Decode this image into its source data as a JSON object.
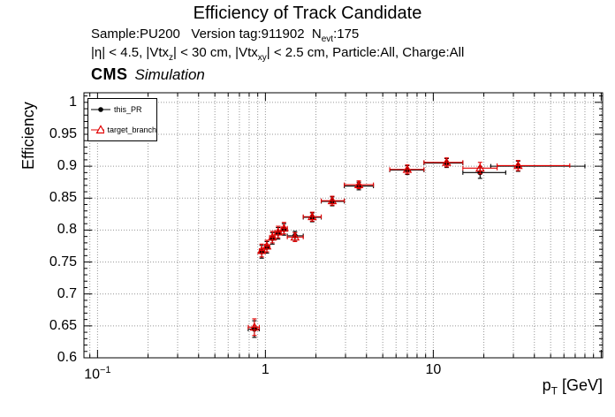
{
  "title": "Efficiency of Track Candidate",
  "header": {
    "sample_pre": "Sample:PU200   Version tag:911902  N",
    "sample_sub": "evt",
    "sample_post": ":175",
    "cuts_p1": "|η| < 4.5, |Vtx",
    "cuts_s1": "z",
    "cuts_p2": "| < 30 cm, |Vtx",
    "cuts_s2": "xy",
    "cuts_p3": "| < 2.5 cm, Particle:All, Charge:All"
  },
  "cms": {
    "label": "CMS",
    "sublabel": "Simulation"
  },
  "axes": {
    "y_title": "Efficiency",
    "x_title_pre": "p",
    "x_title_sub": "T",
    "x_title_post": " [GeV]"
  },
  "chart_data": {
    "type": "scatter",
    "title": "Efficiency of Track Candidate",
    "x_scale": "log",
    "xlim": [
      0.083,
      102
    ],
    "ylim": [
      0.6,
      1.015
    ],
    "xlabel": "p_T [GeV]",
    "ylabel": "Efficiency",
    "grid": true,
    "legend_position": "top-left",
    "grid_color": "#969696",
    "x_ticks": [
      {
        "value": 0.1,
        "base": "10",
        "exp": "−1"
      },
      {
        "value": 1,
        "base": "1",
        "exp": ""
      },
      {
        "value": 10,
        "base": "10",
        "exp": ""
      }
    ],
    "y_ticks": [
      {
        "value": 0.6,
        "label": "0.6"
      },
      {
        "value": 0.65,
        "label": "0.65"
      },
      {
        "value": 0.7,
        "label": "0.7"
      },
      {
        "value": 0.75,
        "label": "0.75"
      },
      {
        "value": 0.8,
        "label": "0.8"
      },
      {
        "value": 0.85,
        "label": "0.85"
      },
      {
        "value": 0.9,
        "label": "0.9"
      },
      {
        "value": 0.95,
        "label": "0.95"
      },
      {
        "value": 1,
        "label": "1"
      }
    ],
    "series": [
      {
        "name": "this_PR",
        "color": "#000000",
        "marker": "circle",
        "points": [
          {
            "x": 0.86,
            "xlo": 0.79,
            "xhi": 0.92,
            "y": 0.645,
            "ey": 0.013
          },
          {
            "x": 0.95,
            "xlo": 0.92,
            "xhi": 0.99,
            "y": 0.766,
            "ey": 0.01
          },
          {
            "x": 1.02,
            "xlo": 0.99,
            "xhi": 1.06,
            "y": 0.773,
            "ey": 0.009
          },
          {
            "x": 1.1,
            "xlo": 1.06,
            "xhi": 1.14,
            "y": 0.787,
            "ey": 0.009
          },
          {
            "x": 1.19,
            "xlo": 1.14,
            "xhi": 1.24,
            "y": 0.795,
            "ey": 0.009
          },
          {
            "x": 1.29,
            "xlo": 1.24,
            "xhi": 1.35,
            "y": 0.801,
            "ey": 0.009
          },
          {
            "x": 1.5,
            "xlo": 1.35,
            "xhi": 1.68,
            "y": 0.791,
            "ey": 0.007
          },
          {
            "x": 1.9,
            "xlo": 1.68,
            "xhi": 2.15,
            "y": 0.82,
            "ey": 0.007
          },
          {
            "x": 2.5,
            "xlo": 2.15,
            "xhi": 2.95,
            "y": 0.845,
            "ey": 0.007
          },
          {
            "x": 3.6,
            "xlo": 2.95,
            "xhi": 4.4,
            "y": 0.869,
            "ey": 0.006
          },
          {
            "x": 7.0,
            "xlo": 5.5,
            "xhi": 8.8,
            "y": 0.894,
            "ey": 0.007
          },
          {
            "x": 12.0,
            "xlo": 8.8,
            "xhi": 15.0,
            "y": 0.905,
            "ey": 0.007
          },
          {
            "x": 19.0,
            "xlo": 15.0,
            "xhi": 27.0,
            "y": 0.89,
            "ey": 0.009
          },
          {
            "x": 32.0,
            "xlo": 22.0,
            "xhi": 80.0,
            "y": 0.9,
            "ey": 0.008
          }
        ]
      },
      {
        "name": "target_branch",
        "color": "#e10000",
        "marker": "triangle-open",
        "points": [
          {
            "x": 0.86,
            "xlo": 0.79,
            "xhi": 0.92,
            "y": 0.648,
            "ey": 0.013
          },
          {
            "x": 0.95,
            "xlo": 0.92,
            "xhi": 0.99,
            "y": 0.768,
            "ey": 0.01
          },
          {
            "x": 1.02,
            "xlo": 0.99,
            "xhi": 1.06,
            "y": 0.775,
            "ey": 0.009
          },
          {
            "x": 1.1,
            "xlo": 1.06,
            "xhi": 1.14,
            "y": 0.789,
            "ey": 0.009
          },
          {
            "x": 1.19,
            "xlo": 1.14,
            "xhi": 1.24,
            "y": 0.797,
            "ey": 0.009
          },
          {
            "x": 1.29,
            "xlo": 1.24,
            "xhi": 1.35,
            "y": 0.803,
            "ey": 0.009
          },
          {
            "x": 1.5,
            "xlo": 1.35,
            "xhi": 1.68,
            "y": 0.789,
            "ey": 0.007
          },
          {
            "x": 1.9,
            "xlo": 1.68,
            "xhi": 2.15,
            "y": 0.821,
            "ey": 0.007
          },
          {
            "x": 2.5,
            "xlo": 2.15,
            "xhi": 2.95,
            "y": 0.846,
            "ey": 0.007
          },
          {
            "x": 3.6,
            "xlo": 2.95,
            "xhi": 4.4,
            "y": 0.871,
            "ey": 0.006
          },
          {
            "x": 7.0,
            "xlo": 5.5,
            "xhi": 8.8,
            "y": 0.895,
            "ey": 0.007
          },
          {
            "x": 12.0,
            "xlo": 8.8,
            "xhi": 15.0,
            "y": 0.906,
            "ey": 0.007
          },
          {
            "x": 19.0,
            "xlo": 15.0,
            "xhi": 24.0,
            "y": 0.897,
            "ey": 0.009
          },
          {
            "x": 32.0,
            "xlo": 24.0,
            "xhi": 65.0,
            "y": 0.901,
            "ey": 0.008
          }
        ]
      }
    ]
  }
}
